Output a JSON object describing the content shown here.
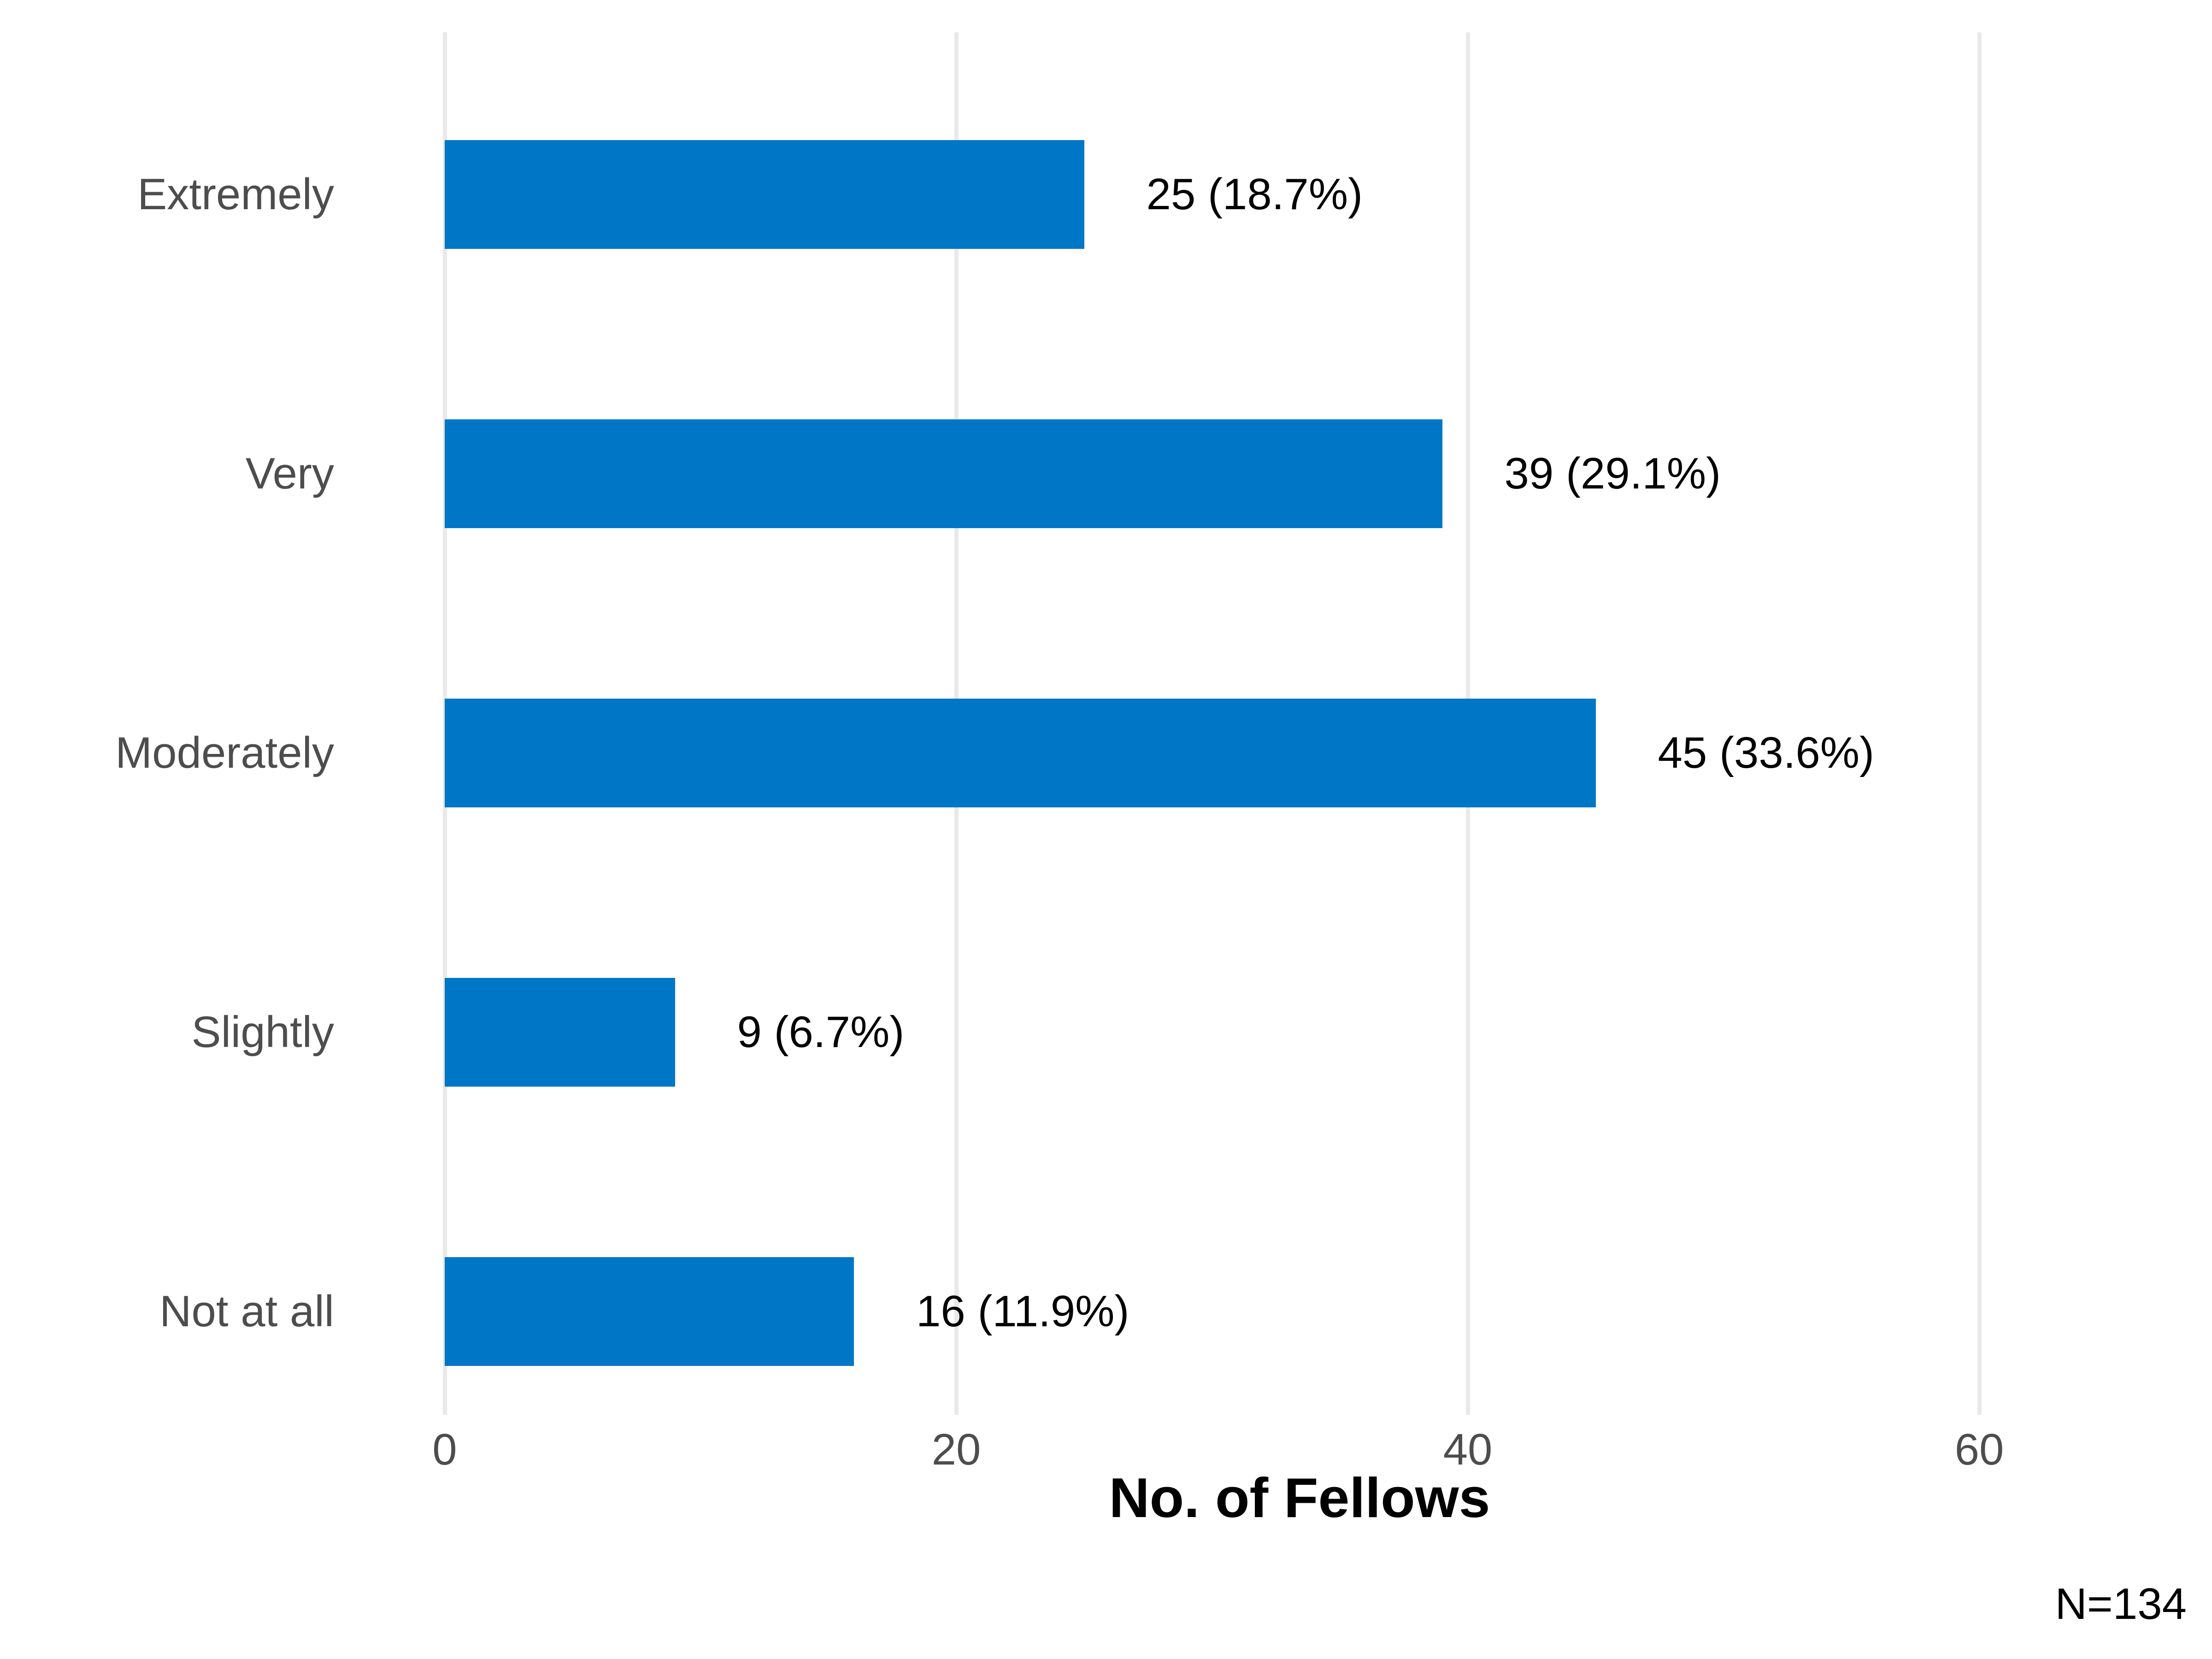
{
  "chart_data": {
    "type": "bar",
    "orientation": "horizontal",
    "title": "",
    "categories": [
      "Extremely",
      "Very",
      "Moderately",
      "Slightly",
      "Not at all"
    ],
    "values": [
      25,
      39,
      45,
      9,
      16
    ],
    "bar_labels": [
      "25 (18.7%)",
      "39 (29.1%)",
      "45 (33.6%)",
      "9 (6.7%)",
      "16 (11.9%)"
    ],
    "percentages": [
      18.7,
      29.1,
      33.6,
      6.7,
      11.9
    ],
    "xlabel": "No. of Fellows",
    "ylabel": "",
    "x_ticks": [
      0,
      20,
      40,
      60
    ],
    "xlim": [
      0,
      69
    ],
    "grid": "vertical gridlines on",
    "legend": "none",
    "note": "N=134",
    "colors": {
      "bar": "#0076c6",
      "gridline": "#e9e9e9",
      "axis_text": "#4d4d4d",
      "value_text": "#000000"
    }
  }
}
